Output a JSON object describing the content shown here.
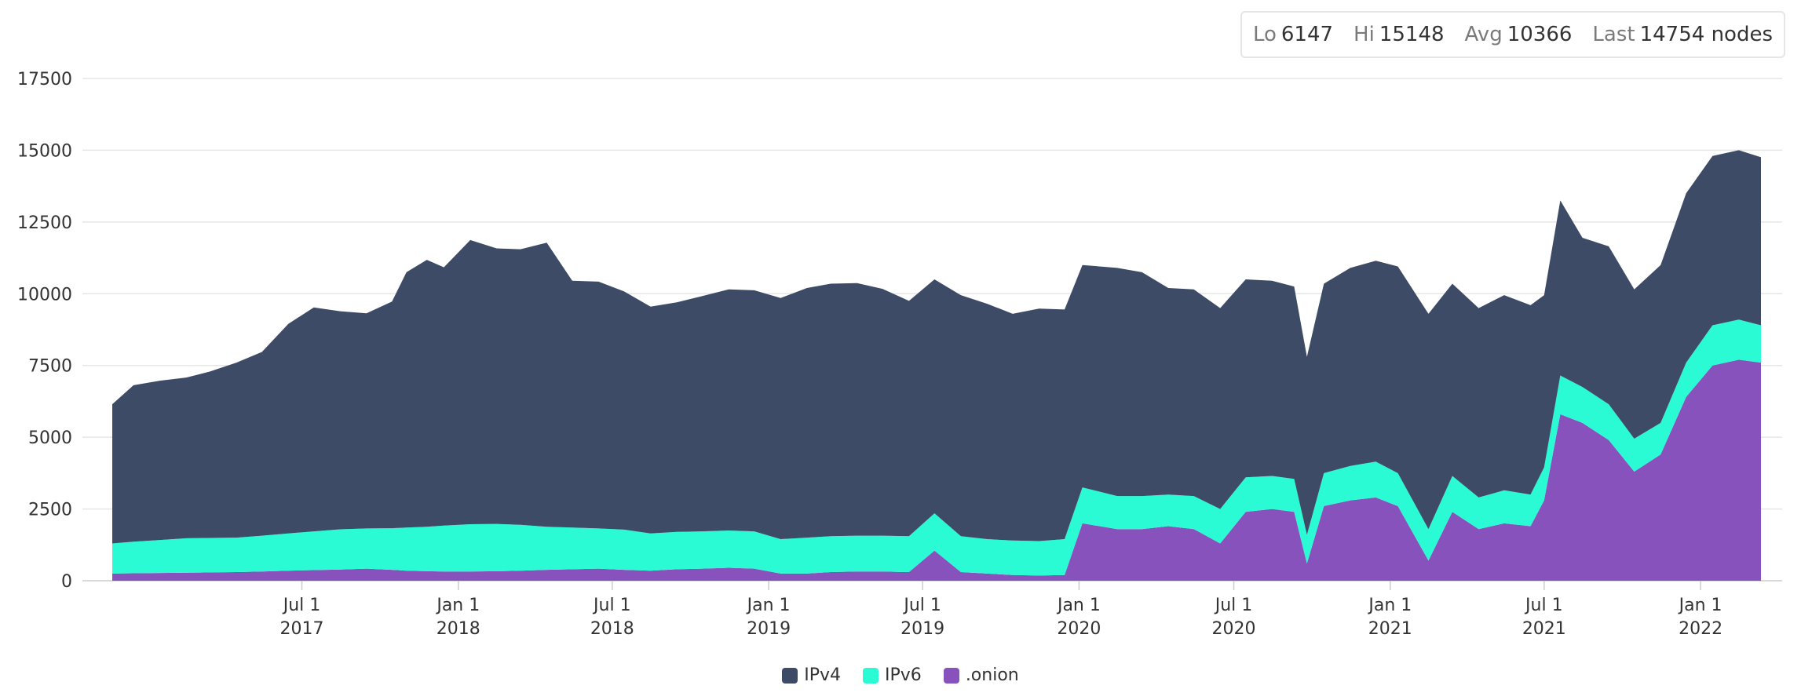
{
  "stats": {
    "lo_label": "Lo",
    "lo_value": "6147",
    "hi_label": "Hi",
    "hi_value": "15148",
    "avg_label": "Avg",
    "avg_value": "10366",
    "last_label": "Last",
    "last_value": "14754 nodes"
  },
  "chart_data": {
    "type": "area",
    "stacked": true,
    "ylim": [
      0,
      17500
    ],
    "yticks": [
      "0",
      "2500",
      "5000",
      "7500",
      "10000",
      "12500",
      "15000",
      "17500"
    ],
    "xlim": [
      "2016-11-20",
      "2022-03-13"
    ],
    "xticks": [
      {
        "date": "2017-07-01",
        "line1": "Jul 1",
        "line2": "2017"
      },
      {
        "date": "2018-01-01",
        "line1": "Jan 1",
        "line2": "2018"
      },
      {
        "date": "2018-07-01",
        "line1": "Jul 1",
        "line2": "2018"
      },
      {
        "date": "2019-01-01",
        "line1": "Jan 1",
        "line2": "2019"
      },
      {
        "date": "2019-07-01",
        "line1": "Jul 1",
        "line2": "2019"
      },
      {
        "date": "2020-01-01",
        "line1": "Jan 1",
        "line2": "2020"
      },
      {
        "date": "2020-07-01",
        "line1": "Jul 1",
        "line2": "2020"
      },
      {
        "date": "2021-01-01",
        "line1": "Jan 1",
        "line2": "2021"
      },
      {
        "date": "2021-07-01",
        "line1": "Jul 1",
        "line2": "2021"
      },
      {
        "date": "2022-01-01",
        "line1": "Jan 1",
        "line2": "2022"
      }
    ],
    "grid": true,
    "legend_position": "bottom-center",
    "dates": [
      "2016-11-20",
      "2016-12-15",
      "2017-01-15",
      "2017-02-15",
      "2017-03-15",
      "2017-04-15",
      "2017-05-15",
      "2017-06-15",
      "2017-07-15",
      "2017-08-15",
      "2017-09-15",
      "2017-10-15",
      "2017-11-01",
      "2017-11-25",
      "2017-12-15",
      "2018-01-15",
      "2018-02-15",
      "2018-03-15",
      "2018-04-15",
      "2018-05-15",
      "2018-06-15",
      "2018-07-15",
      "2018-08-15",
      "2018-09-15",
      "2018-10-15",
      "2018-11-15",
      "2018-12-15",
      "2019-01-15",
      "2019-02-15",
      "2019-03-15",
      "2019-04-15",
      "2019-05-15",
      "2019-06-15",
      "2019-07-15",
      "2019-08-15",
      "2019-09-15",
      "2019-10-15",
      "2019-11-15",
      "2019-12-15",
      "2020-01-05",
      "2020-02-15",
      "2020-03-15",
      "2020-04-15",
      "2020-05-15",
      "2020-06-15",
      "2020-07-15",
      "2020-08-15",
      "2020-09-10",
      "2020-09-25",
      "2020-10-15",
      "2020-11-15",
      "2020-12-15",
      "2021-01-10",
      "2021-02-15",
      "2021-03-15",
      "2021-04-15",
      "2021-05-15",
      "2021-06-15",
      "2021-07-01",
      "2021-07-20",
      "2021-08-15",
      "2021-09-15",
      "2021-10-15",
      "2021-11-15",
      "2021-12-15",
      "2022-01-15",
      "2022-02-15",
      "2022-03-13"
    ],
    "series": [
      {
        "name": ".onion",
        "color": "#8852bd",
        "values": [
          250,
          260,
          270,
          280,
          290,
          300,
          320,
          350,
          370,
          390,
          420,
          380,
          350,
          330,
          320,
          320,
          330,
          350,
          380,
          400,
          420,
          380,
          350,
          400,
          420,
          450,
          420,
          250,
          250,
          300,
          320,
          320,
          300,
          1050,
          300,
          250,
          200,
          180,
          200,
          2000,
          1800,
          1800,
          1900,
          1800,
          1300,
          2400,
          2500,
          2400,
          600,
          2600,
          2800,
          2900,
          2600,
          700,
          2400,
          1800,
          2000,
          1900,
          2800,
          5800,
          5500,
          4900,
          3800,
          4400,
          6400,
          7500,
          7700,
          7600
        ]
      },
      {
        "name": "IPv6",
        "color": "#2bfbd4",
        "values": [
          1050,
          1100,
          1150,
          1200,
          1200,
          1200,
          1250,
          1300,
          1350,
          1400,
          1400,
          1450,
          1500,
          1550,
          1600,
          1650,
          1650,
          1600,
          1500,
          1450,
          1400,
          1400,
          1300,
          1300,
          1300,
          1300,
          1300,
          1200,
          1250,
          1250,
          1250,
          1250,
          1250,
          1300,
          1250,
          1200,
          1200,
          1200,
          1250,
          1250,
          1150,
          1150,
          1100,
          1150,
          1200,
          1200,
          1150,
          1150,
          1000,
          1150,
          1200,
          1250,
          1150,
          1100,
          1250,
          1100,
          1150,
          1100,
          1150,
          1350,
          1250,
          1250,
          1150,
          1100,
          1200,
          1400,
          1400,
          1300
        ]
      },
      {
        "name": "IPv4",
        "color": "#3d4b66",
        "values": [
          4850,
          5450,
          5550,
          5600,
          5800,
          6100,
          6400,
          7300,
          7800,
          7600,
          7500,
          7900,
          8900,
          9300,
          9000,
          9900,
          9600,
          9600,
          9900,
          8600,
          8600,
          8300,
          7900,
          8000,
          8200,
          8400,
          8400,
          8400,
          8700,
          8800,
          8800,
          8600,
          8200,
          8150,
          8400,
          8200,
          7900,
          8100,
          8000,
          7750,
          7950,
          7800,
          7200,
          7200,
          7000,
          6900,
          6800,
          6700,
          6200,
          6600,
          6900,
          7000,
          7200,
          7500,
          6700,
          6600,
          6800,
          6600,
          6000,
          6100,
          5200,
          5500,
          5200,
          5500,
          5900,
          5900,
          5900,
          5854
        ]
      }
    ]
  }
}
